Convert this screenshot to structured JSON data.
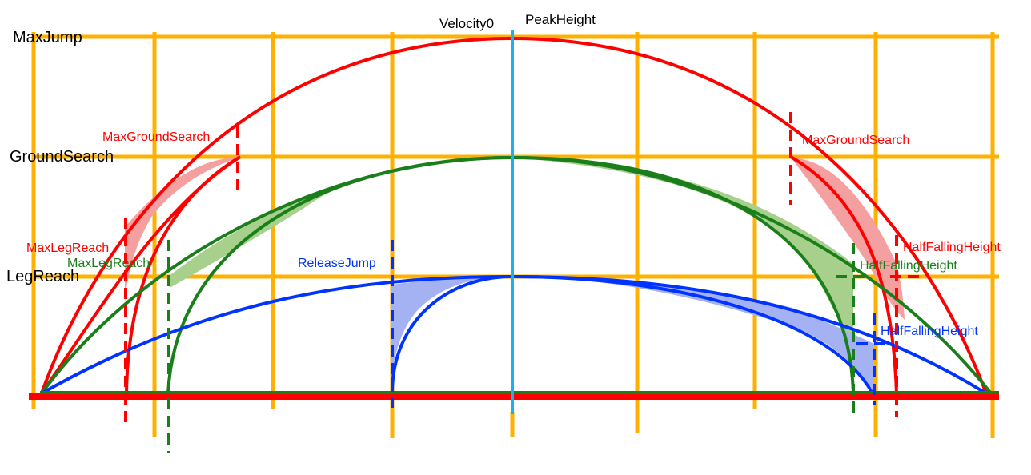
{
  "levels": {
    "max_jump": "MaxJump",
    "ground_search": "GroundSearch",
    "leg_reach": "LegReach"
  },
  "top_labels": {
    "velocity0": "Velocity0",
    "peak_height": "PeakHeight"
  },
  "red_labels": {
    "max_ground_search_left": "MaxGroundSearch",
    "max_ground_search_right": "MaxGroundSearch",
    "max_leg_reach": "MaxLegReach",
    "half_falling_height": "HalfFallingHeight"
  },
  "green_labels": {
    "max_leg_reach": "MaxLegReach",
    "half_falling_height": "HalfFallingHeight"
  },
  "blue_labels": {
    "release_jump": "ReleaseJump",
    "half_falling_height": "HalfFallingHeight"
  },
  "colors": {
    "grid": "#FFB000",
    "red": "#FF0000",
    "red_fill": "#F4A0A0",
    "green": "#1A7F1A",
    "green_fill": "#A8D08D",
    "blue": "#0033FF",
    "blue_fill": "#A4B2F4",
    "center": "#1BB0F0"
  }
}
